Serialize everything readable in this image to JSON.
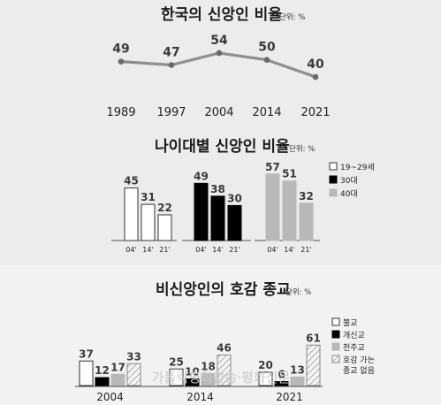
{
  "colors": {
    "background": "#e4e4e4",
    "panel_top": "#ececec",
    "panel_bottom": "#f2f2f2",
    "line": "#8e8e8e",
    "bar_white": "#ffffff",
    "bar_black": "#000000",
    "bar_gray": "#b8b8b8"
  },
  "watermark": "가톨릭평화방송·평화신문",
  "chart_data": [
    {
      "type": "line",
      "title": "한국의 신앙인 비율",
      "unit": "단위: %",
      "x": [
        "1989",
        "1997",
        "2004",
        "2014",
        "2021"
      ],
      "values": [
        49,
        47,
        54,
        50,
        40
      ],
      "data_labels": [
        "49",
        "47",
        "54",
        "50",
        "40"
      ],
      "grid": false
    },
    {
      "type": "bar",
      "title": "나이대별 신앙인 비율",
      "unit": "단위: %",
      "groups": [
        {
          "series_key": "s1",
          "categories": [
            "04'",
            "14'",
            "21'"
          ],
          "values": [
            45,
            31,
            22
          ],
          "data_labels": [
            "45",
            "31",
            "22"
          ]
        },
        {
          "series_key": "s2",
          "categories": [
            "04'",
            "14'",
            "21'"
          ],
          "values": [
            49,
            38,
            30
          ],
          "data_labels": [
            "49",
            "38",
            "30"
          ]
        },
        {
          "series_key": "s3",
          "categories": [
            "04'",
            "14'",
            "21'"
          ],
          "values": [
            57,
            51,
            32
          ],
          "data_labels": [
            "57",
            "51",
            "32"
          ]
        }
      ],
      "legend": [
        {
          "key": "s1",
          "label": "19~29세",
          "style": "white"
        },
        {
          "key": "s2",
          "label": "30대",
          "style": "black"
        },
        {
          "key": "s3",
          "label": "40대",
          "style": "gray"
        }
      ],
      "legend_position": "right",
      "grid": false
    },
    {
      "type": "bar",
      "title": "비신앙인의 호감 종교",
      "unit": "단위: %",
      "categories": [
        "2004",
        "2014",
        "2021"
      ],
      "series": [
        {
          "key": "buddhism",
          "name": "불교",
          "style": "white",
          "values": [
            37,
            25,
            20
          ],
          "data_labels": [
            "37",
            "25",
            "20"
          ]
        },
        {
          "key": "protestant",
          "name": "개신교",
          "style": "black",
          "values": [
            12,
            10,
            6
          ],
          "data_labels": [
            "12",
            "10",
            "6"
          ]
        },
        {
          "key": "catholic",
          "name": "천주교",
          "style": "gray",
          "values": [
            17,
            18,
            13
          ],
          "data_labels": [
            "17",
            "18",
            "13"
          ]
        },
        {
          "key": "none",
          "name": "호감 가는 종교 없음",
          "name_lines": [
            "호감 가는",
            "종교 없음"
          ],
          "style": "hatch",
          "values": [
            33,
            46,
            61
          ],
          "data_labels": [
            "33",
            "46",
            "61"
          ]
        }
      ],
      "legend_position": "right",
      "grid": false
    }
  ]
}
